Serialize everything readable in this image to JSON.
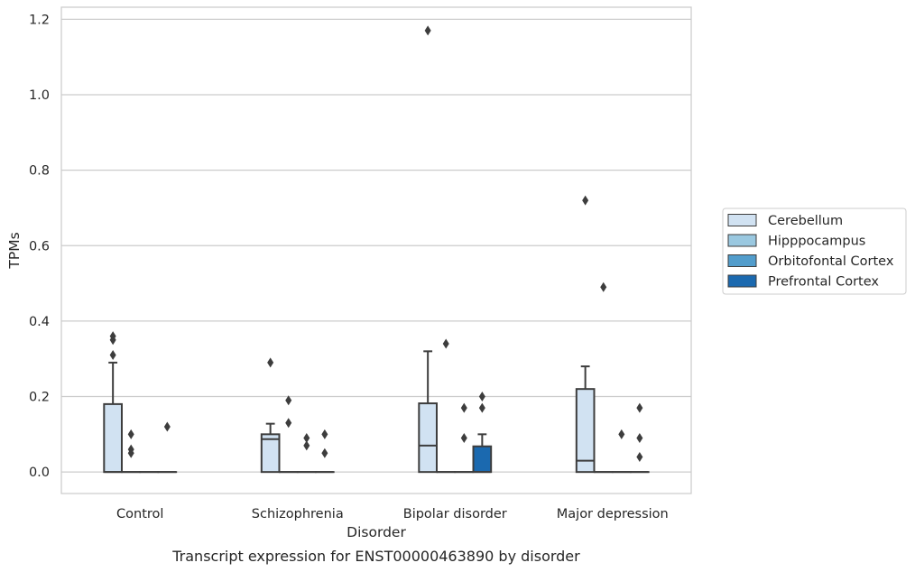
{
  "chart_data": {
    "type": "box",
    "xlabel": "Disorder",
    "ylabel": "TPMs",
    "caption": "Transcript expression for ENST00000463890 by disorder",
    "categories": [
      "Control",
      "Schizophrenia",
      "Bipolar disorder",
      "Major depression"
    ],
    "yticks": [
      "0.0",
      "0.2",
      "0.4",
      "0.6",
      "0.8",
      "1.0",
      "1.2"
    ],
    "ylim": [
      -0.057,
      1.232
    ],
    "grid": true,
    "legend_position": "right",
    "series": [
      {
        "name": "Cerebellum",
        "color": "#d1e2f2",
        "boxes": [
          {
            "q1": 0.0,
            "median": 0.0,
            "q3": 0.18,
            "whisker_low": 0.0,
            "whisker_high": 0.29,
            "outliers": [
              0.31,
              0.35,
              0.36
            ]
          },
          {
            "q1": 0.0,
            "median": 0.087,
            "q3": 0.1,
            "whisker_low": 0.0,
            "whisker_high": 0.128,
            "outliers": [
              0.29
            ]
          },
          {
            "q1": 0.0,
            "median": 0.07,
            "q3": 0.182,
            "whisker_low": 0.0,
            "whisker_high": 0.32,
            "outliers": [
              1.17
            ]
          },
          {
            "q1": 0.0,
            "median": 0.03,
            "q3": 0.22,
            "whisker_low": 0.0,
            "whisker_high": 0.28,
            "outliers": [
              0.72
            ]
          }
        ]
      },
      {
        "name": "Hipppocampus",
        "color": "#9ac8e0",
        "boxes": [
          {
            "q1": 0.0,
            "median": 0.0,
            "q3": 0.0,
            "whisker_low": 0.0,
            "whisker_high": 0.0,
            "outliers": [
              0.05,
              0.06,
              0.1
            ]
          },
          {
            "q1": 0.0,
            "median": 0.0,
            "q3": 0.0,
            "whisker_low": 0.0,
            "whisker_high": 0.0,
            "outliers": [
              0.13,
              0.19
            ]
          },
          {
            "q1": 0.0,
            "median": 0.0,
            "q3": 0.0,
            "whisker_low": 0.0,
            "whisker_high": 0.0,
            "outliers": [
              0.34
            ]
          },
          {
            "q1": 0.0,
            "median": 0.0,
            "q3": 0.0,
            "whisker_low": 0.0,
            "whisker_high": 0.0,
            "outliers": [
              0.49
            ]
          }
        ]
      },
      {
        "name": "Orbitofontal Cortex",
        "color": "#529dcc",
        "boxes": [
          {
            "q1": 0.0,
            "median": 0.0,
            "q3": 0.0,
            "whisker_low": 0.0,
            "whisker_high": 0.0,
            "outliers": []
          },
          {
            "q1": 0.0,
            "median": 0.0,
            "q3": 0.0,
            "whisker_low": 0.0,
            "whisker_high": 0.0,
            "outliers": [
              0.07,
              0.09
            ]
          },
          {
            "q1": 0.0,
            "median": 0.0,
            "q3": 0.0,
            "whisker_low": 0.0,
            "whisker_high": 0.0,
            "outliers": [
              0.09,
              0.17
            ]
          },
          {
            "q1": 0.0,
            "median": 0.0,
            "q3": 0.0,
            "whisker_low": 0.0,
            "whisker_high": 0.0,
            "outliers": [
              0.1
            ]
          }
        ]
      },
      {
        "name": "Prefrontal Cortex",
        "color": "#1b69af",
        "boxes": [
          {
            "q1": 0.0,
            "median": 0.0,
            "q3": 0.0,
            "whisker_low": 0.0,
            "whisker_high": 0.0,
            "outliers": [
              0.12
            ]
          },
          {
            "q1": 0.0,
            "median": 0.0,
            "q3": 0.0,
            "whisker_low": 0.0,
            "whisker_high": 0.0,
            "outliers": [
              0.05,
              0.1
            ]
          },
          {
            "q1": 0.0,
            "median": 0.0,
            "q3": 0.068,
            "whisker_low": 0.0,
            "whisker_high": 0.1,
            "outliers": [
              0.17,
              0.2
            ]
          },
          {
            "q1": 0.0,
            "median": 0.0,
            "q3": 0.0,
            "whisker_low": 0.0,
            "whisker_high": 0.0,
            "outliers": [
              0.04,
              0.09,
              0.17
            ]
          }
        ]
      }
    ]
  }
}
